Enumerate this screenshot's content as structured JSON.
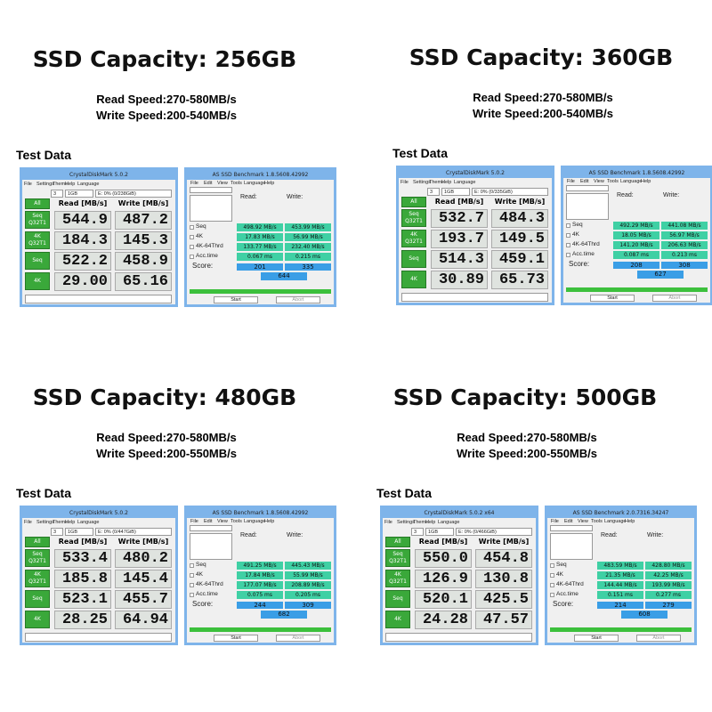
{
  "common": {
    "test_label": "Test Data",
    "cdm_menu": [
      "File",
      "Settings",
      "Theme",
      "Help",
      "Language"
    ],
    "cdm_count": "3",
    "cdm_size": "1GB",
    "cdm_all": "All",
    "cdm_read": "Read [MB/s]",
    "cdm_write": "Write [MB/s]",
    "cdm_rows": [
      [
        "Seq",
        "Q32T1"
      ],
      [
        "4K",
        "Q32T1"
      ],
      [
        "Seq"
      ],
      [
        "4K"
      ]
    ],
    "as_menu": [
      "File",
      "Edit",
      "View",
      "Tools",
      "Language",
      "Help"
    ],
    "as_read": "Read:",
    "as_write": "Write:",
    "as_rows": [
      "Seq",
      "4K",
      "4K-64Thrd",
      "Acc.time"
    ],
    "as_score": "Score:",
    "as_start": "Start",
    "as_abort": "Abort"
  },
  "panels": [
    {
      "title": "SSD Capacity: 256GB",
      "read_speed": "Read Speed:270-580MB/s",
      "write_speed": "Write Speed:200-540MB/s",
      "cdm_title": "CrystalDiskMark 5.0.2",
      "drive": "E: 0% (0/238GiB)",
      "cdm_values": [
        [
          "544.9",
          "487.2"
        ],
        [
          "184.3",
          "145.3"
        ],
        [
          "522.2",
          "458.9"
        ],
        [
          "29.00",
          "65.16"
        ]
      ],
      "as_title": "AS SSD Benchmark 1.8.5608.42992",
      "as_values": [
        [
          "498.92 MB/s",
          "453.99 MB/s"
        ],
        [
          "17.83 MB/s",
          "56.99 MB/s"
        ],
        [
          "133.77 MB/s",
          "232.40 MB/s"
        ],
        [
          "0.067 ms",
          "0.215 ms"
        ]
      ],
      "scores": [
        "201",
        "335",
        "644"
      ]
    },
    {
      "title": "SSD Capacity: 360GB",
      "read_speed": "Read Speed:270-580MB/s",
      "write_speed": "Write Speed:200-540MB/s",
      "cdm_title": "CrystalDiskMark 5.0.2",
      "drive": "E: 0% (0/335GiB)",
      "cdm_values": [
        [
          "532.7",
          "484.3"
        ],
        [
          "193.7",
          "149.5"
        ],
        [
          "514.3",
          "459.1"
        ],
        [
          "30.89",
          "65.73"
        ]
      ],
      "as_title": "AS SSD Benchmark 1.8.5608.42992",
      "as_values": [
        [
          "492.29 MB/s",
          "441.08 MB/s"
        ],
        [
          "18.05 MB/s",
          "56.97 MB/s"
        ],
        [
          "141.20 MB/s",
          "206.63 MB/s"
        ],
        [
          "0.087 ms",
          "0.213 ms"
        ]
      ],
      "scores": [
        "208",
        "308",
        "627"
      ]
    },
    {
      "title": "SSD Capacity: 480GB",
      "read_speed": "Read Speed:270-580MB/s",
      "write_speed": "Write Speed:200-550MB/s",
      "cdm_title": "CrystalDiskMark 5.0.2",
      "drive": "E: 0% (0/447GiB)",
      "cdm_values": [
        [
          "533.4",
          "480.2"
        ],
        [
          "185.8",
          "145.4"
        ],
        [
          "523.1",
          "455.7"
        ],
        [
          "28.25",
          "64.94"
        ]
      ],
      "as_title": "AS SSD Benchmark 1.8.5608.42992",
      "as_values": [
        [
          "491.25 MB/s",
          "445.43 MB/s"
        ],
        [
          "17.84 MB/s",
          "55.99 MB/s"
        ],
        [
          "177.07 MB/s",
          "208.89 MB/s"
        ],
        [
          "0.075 ms",
          "0.205 ms"
        ]
      ],
      "scores": [
        "244",
        "309",
        "682"
      ]
    },
    {
      "title": "SSD Capacity: 500GB",
      "read_speed": "Read Speed:270-580MB/s",
      "write_speed": "Write Speed:200-550MB/s",
      "cdm_title": "CrystalDiskMark 5.0.2 x64",
      "drive": "E: 0% (0/466GiB)",
      "cdm_values": [
        [
          "550.0",
          "454.8"
        ],
        [
          "126.9",
          "130.8"
        ],
        [
          "520.1",
          "425.5"
        ],
        [
          "24.28",
          "47.57"
        ]
      ],
      "as_title": "AS SSD Benchmark 2.0.7316.34247",
      "as_values": [
        [
          "483.59 MB/s",
          "428.80 MB/s"
        ],
        [
          "21.35 MB/s",
          "42.25 MB/s"
        ],
        [
          "144.44 MB/s",
          "193.99 MB/s"
        ],
        [
          "0.151 ms",
          "0.277 ms"
        ]
      ],
      "scores": [
        "214",
        "279",
        "608"
      ]
    }
  ]
}
